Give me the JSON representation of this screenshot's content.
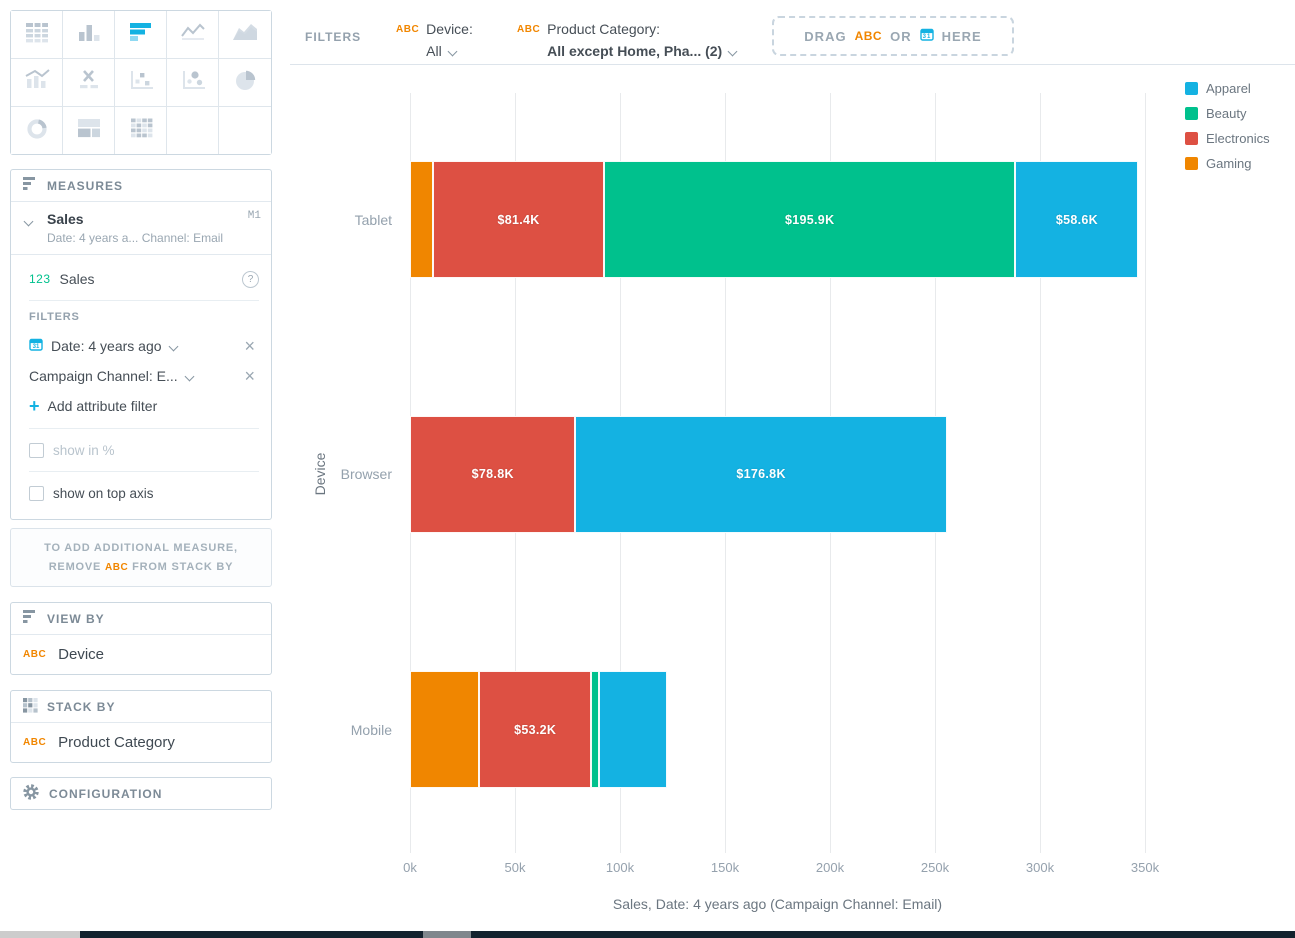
{
  "colors": {
    "accent_blue": "#14b2e2",
    "tag_orange": "#f18600",
    "apparel": "#14b2e2",
    "beauty": "#00c18d",
    "electronics": "#dd5043",
    "gaming": "#f08600"
  },
  "icons": {
    "close": "×",
    "plus": "+",
    "question": "?",
    "calendar_day": "31"
  },
  "vis_picker": {
    "selected": "bar",
    "types": [
      "table",
      "column",
      "bar",
      "line",
      "area",
      "combo",
      "headline",
      "scatter",
      "bubble",
      "pie",
      "donut",
      "treemap",
      "heatmap",
      "empty-1",
      "empty-2"
    ]
  },
  "topbar": {
    "filters_label": "FILTERS",
    "filters": [
      {
        "tag": "ABC",
        "name": "Device:",
        "value": "All",
        "bold": false
      },
      {
        "tag": "ABC",
        "name": "Product Category:",
        "value": "All except Home, Pha...  (2)",
        "bold": true
      }
    ],
    "drop_zone": {
      "pre": "DRAG",
      "tag": "ABC",
      "mid": "OR",
      "post": "HERE"
    }
  },
  "sidebar": {
    "measures": {
      "title": "MEASURES",
      "item": {
        "name": "Sales",
        "badge": "M1",
        "subtitle": "Date: 4 years a... Channel: Email"
      },
      "measure_row": {
        "prefix": "123",
        "label": "Sales"
      },
      "filters_label": "FILTERS",
      "date_filter": "Date: 4 years ago",
      "attribute_filter": "Campaign Channel: E...",
      "add_attribute_filter": "Add attribute filter",
      "show_in_percent": "show in %",
      "show_on_top_axis": "show on top axis"
    },
    "info_box": {
      "line1": "TO ADD ADDITIONAL MEASURE,",
      "line2_pre": "REMOVE",
      "tag": "ABC",
      "line2_post": "FROM STACK BY"
    },
    "view_by": {
      "title": "VIEW BY",
      "tag": "ABC",
      "value": "Device"
    },
    "stack_by": {
      "title": "STACK BY",
      "tag": "ABC",
      "value": "Product Category"
    },
    "configuration": {
      "title": "CONFIGURATION"
    }
  },
  "chart_data": {
    "type": "bar",
    "orientation": "horizontal-stacked",
    "categories": [
      "Tablet",
      "Browser",
      "Mobile"
    ],
    "series": [
      {
        "name": "Apparel",
        "color": "#14b2e2",
        "values": [
          58600,
          176800,
          32000
        ],
        "labels": [
          "$58.6K",
          "$176.8K",
          ""
        ]
      },
      {
        "name": "Beauty",
        "color": "#00c18d",
        "values": [
          195900,
          0,
          4000
        ],
        "labels": [
          "$195.9K",
          "",
          ""
        ]
      },
      {
        "name": "Electronics",
        "color": "#dd5043",
        "values": [
          81400,
          78800,
          53200
        ],
        "labels": [
          "$81.4K",
          "$78.8K",
          "$53.2K"
        ]
      },
      {
        "name": "Gaming",
        "color": "#f08600",
        "values": [
          11000,
          0,
          33000
        ],
        "labels": [
          "",
          "",
          ""
        ]
      }
    ],
    "stack_order": [
      "Gaming",
      "Electronics",
      "Beauty",
      "Apparel"
    ],
    "title": "",
    "xlabel": "Sales, Date: 4 years ago (Campaign Channel: Email)",
    "ylabel": "Device",
    "xlim": [
      0,
      350000
    ],
    "xticks": [
      "0k",
      "50k",
      "100k",
      "150k",
      "200k",
      "250k",
      "300k",
      "350k"
    ],
    "grid": true,
    "legend_position": "top-right"
  }
}
